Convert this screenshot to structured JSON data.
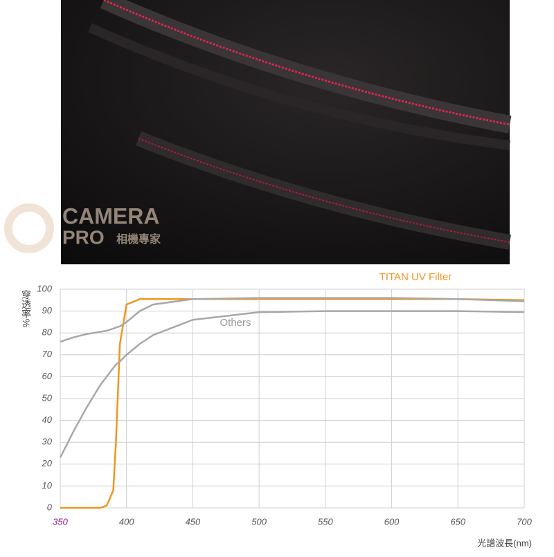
{
  "watermark": {
    "brand_top": "CAMERA",
    "brand_bottom": "PRO",
    "brand_cn": "相機專家"
  },
  "chart_data": {
    "type": "line",
    "ylabel": "穿透率%",
    "xlabel": "光譜波長(nm)",
    "x": [
      350,
      360,
      370,
      380,
      385,
      390,
      392,
      395,
      400,
      410,
      420,
      450,
      500,
      550,
      600,
      650,
      700
    ],
    "series": [
      {
        "name": "TITAN UV Filter",
        "color": "#f0961e",
        "values": [
          0,
          0,
          0,
          0,
          1,
          8,
          30,
          75,
          93,
          95.5,
          95.5,
          95.5,
          95.5,
          95.5,
          95.5,
          95.5,
          95
        ]
      },
      {
        "name": "Others",
        "color": "#a8a8a8",
        "values": [
          23,
          35,
          46,
          56,
          60,
          64,
          65.5,
          67,
          70,
          75,
          79,
          86,
          89.5,
          90,
          90,
          90,
          89.5
        ]
      },
      {
        "color": "#a8a8a8",
        "values": [
          76,
          78,
          79.5,
          80.5,
          81,
          82,
          82.5,
          83,
          85,
          90,
          93,
          95.5,
          96,
          96,
          96,
          95.5,
          94.5
        ]
      }
    ],
    "xlim": [
      350,
      700
    ],
    "xticks": [
      350,
      400,
      450,
      500,
      550,
      600,
      650,
      700
    ],
    "ylim": [
      0,
      100
    ],
    "yticks": [
      0,
      10,
      20,
      30,
      40,
      50,
      60,
      70,
      80,
      90,
      100
    ],
    "grid": true,
    "first_xtick_color": "#8b1a8b"
  }
}
